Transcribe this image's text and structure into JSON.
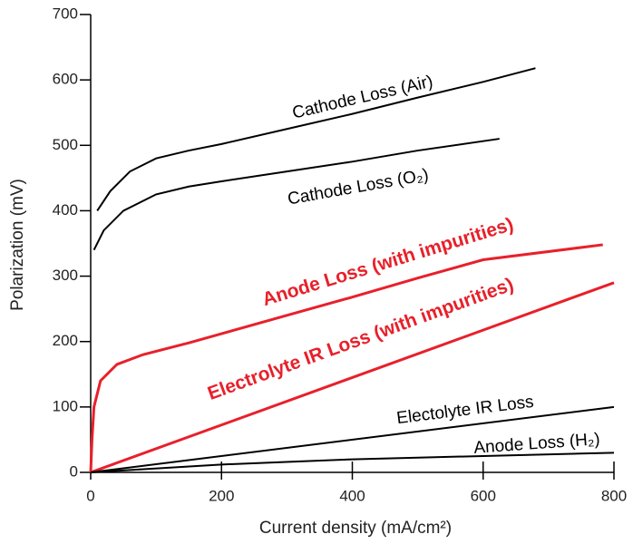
{
  "chart_data": {
    "type": "line",
    "x_label": "Current density (mA/cm²)",
    "y_label": "Polarization (mV)",
    "xlim": [
      0,
      800
    ],
    "ylim": [
      0,
      700
    ],
    "xticks": [
      0,
      200,
      400,
      600,
      800
    ],
    "yticks": [
      0,
      100,
      200,
      300,
      400,
      500,
      600,
      700
    ],
    "series": [
      {
        "name": "Cathode Loss (Air)",
        "color": "#000000",
        "x": [
          10,
          30,
          60,
          100,
          150,
          200,
          300,
          400,
          500,
          600,
          680
        ],
        "values": [
          400,
          430,
          460,
          480,
          492,
          502,
          525,
          548,
          573,
          597,
          618
        ]
      },
      {
        "name": "Cathode Loss (O₂)",
        "color": "#000000",
        "x": [
          5,
          20,
          50,
          100,
          150,
          200,
          300,
          400,
          500,
          625
        ],
        "values": [
          340,
          370,
          400,
          425,
          437,
          445,
          460,
          475,
          492,
          510
        ]
      },
      {
        "name": "Anode Loss (with impurities)",
        "color": "#e8202a",
        "x": [
          0,
          2,
          5,
          15,
          40,
          80,
          150,
          200,
          300,
          400,
          500,
          600,
          783
        ],
        "values": [
          0,
          50,
          100,
          140,
          165,
          180,
          198,
          212,
          240,
          268,
          297,
          325,
          348
        ]
      },
      {
        "name": "Electrolyte IR Loss (with impurities)",
        "color": "#e8202a",
        "x": [
          0,
          800
        ],
        "values": [
          0,
          290
        ]
      },
      {
        "name": "Electolyte IR Loss",
        "color": "#000000",
        "x": [
          0,
          800
        ],
        "values": [
          0,
          100
        ]
      },
      {
        "name": "Anode Loss (H₂)",
        "color": "#000000",
        "x": [
          0,
          200,
          400,
          600,
          800
        ],
        "values": [
          0,
          12,
          20,
          25,
          30
        ]
      }
    ]
  }
}
